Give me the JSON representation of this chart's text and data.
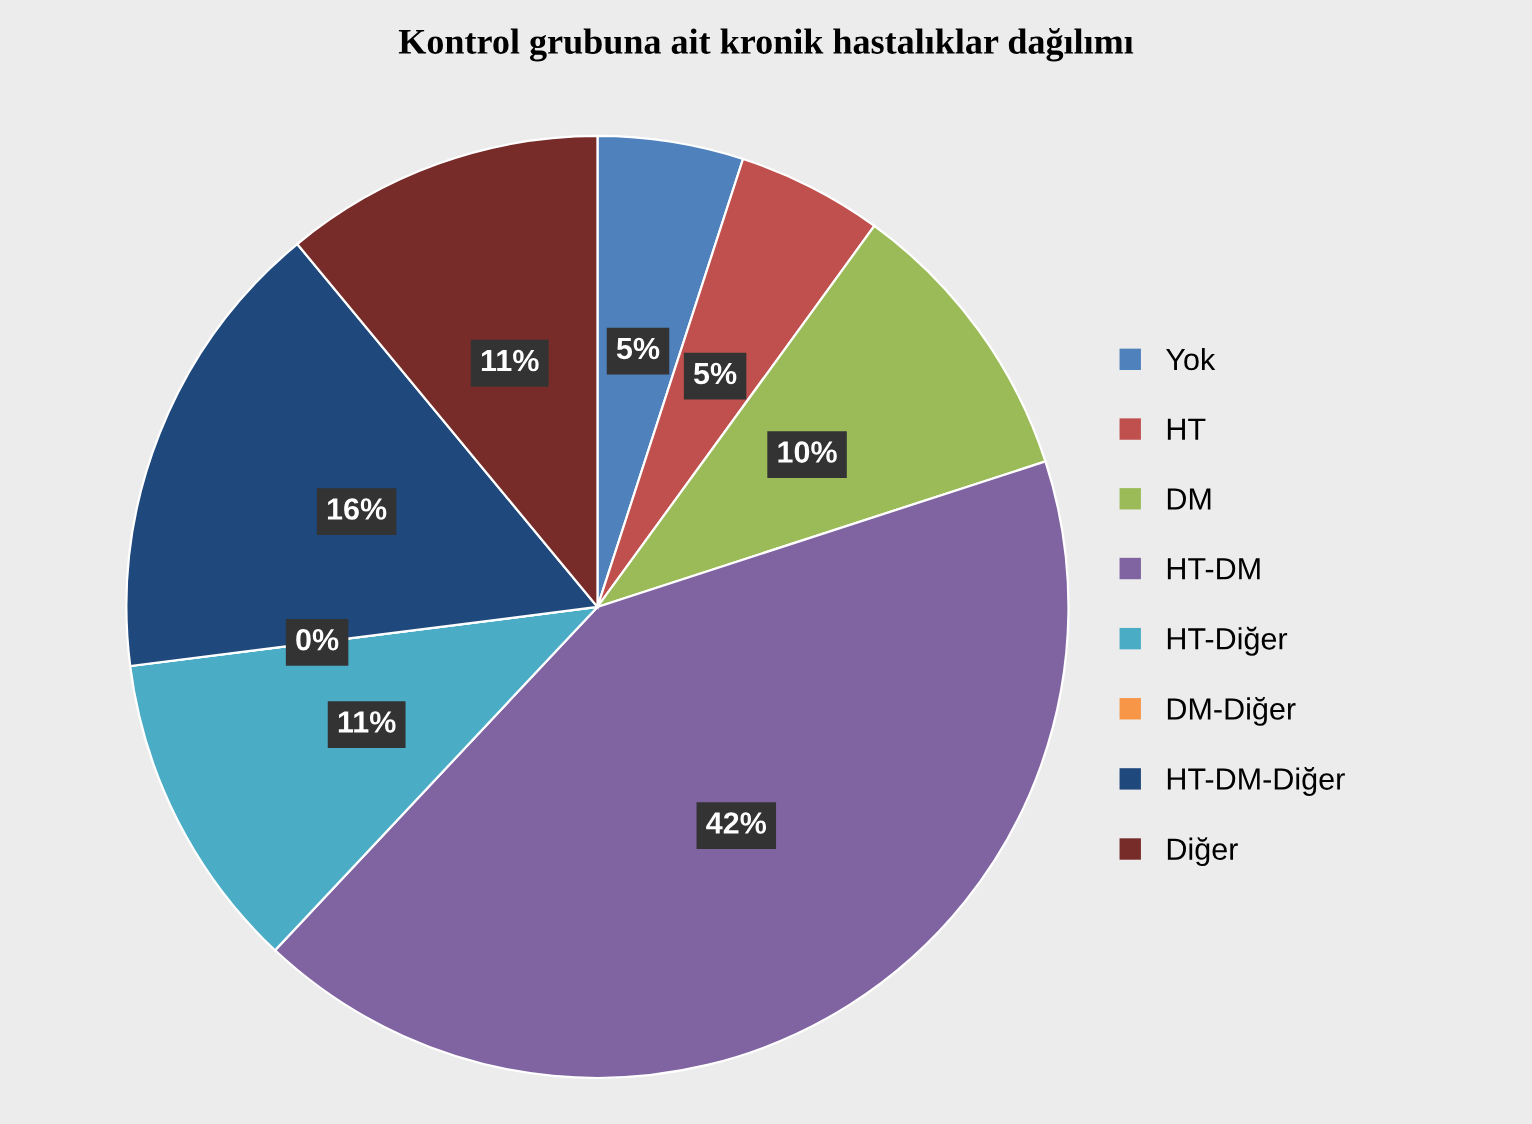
{
  "chart_data": {
    "type": "pie",
    "title": "Kontrol grubuna ait kronik hastalıklar dağılımı",
    "categories": [
      "Yok",
      "HT",
      "DM",
      "HT-DM",
      "HT-Diğer",
      "DM-Diğer",
      "HT-DM-Diğer",
      "Diğer"
    ],
    "values": [
      5,
      5,
      10,
      42,
      11,
      0,
      16,
      11
    ],
    "value_labels": [
      "5%",
      "5%",
      "10%",
      "42%",
      "11%",
      "0%",
      "16%",
      "11%"
    ],
    "colors": [
      "#4f81bd",
      "#c0504d",
      "#9bbb59",
      "#8064a2",
      "#4bacc6",
      "#f79646",
      "#1f497d",
      "#772c2a"
    ],
    "legend": "right"
  }
}
